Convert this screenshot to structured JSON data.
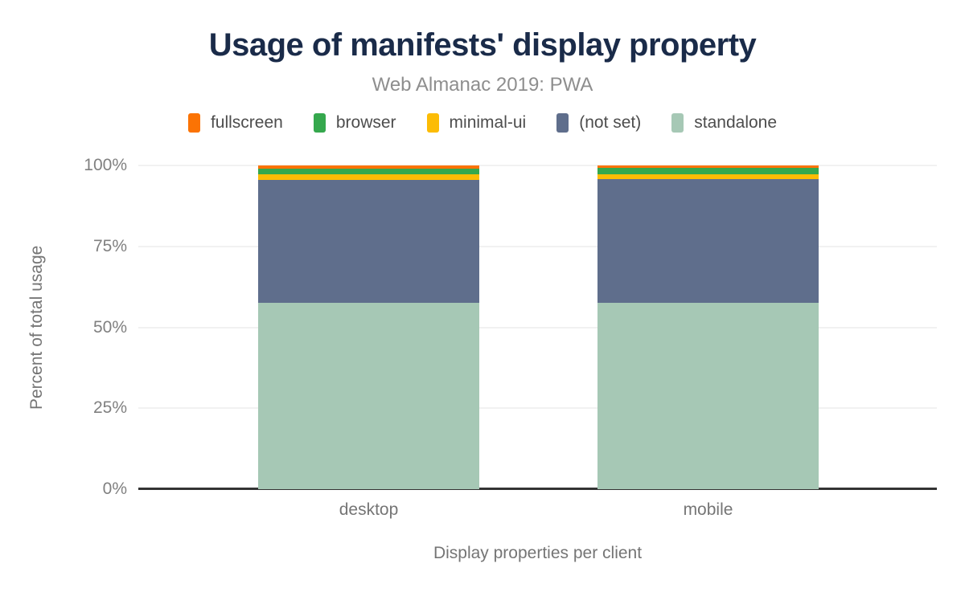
{
  "chart_data": {
    "type": "bar",
    "variant": "stacked-100",
    "title": "Usage of manifests' display property",
    "subtitle": "Web Almanac 2019: PWA",
    "xlabel": "Display properties per client",
    "ylabel": "Percent of total usage",
    "categories": [
      "desktop",
      "mobile"
    ],
    "series": [
      {
        "name": "fullscreen",
        "color": "#fb7304",
        "values": [
          1.0,
          0.8
        ]
      },
      {
        "name": "browser",
        "color": "#35a84d",
        "values": [
          1.7,
          2.0
        ]
      },
      {
        "name": "minimal-ui",
        "color": "#fcbc05",
        "values": [
          1.8,
          1.3
        ]
      },
      {
        "name": "(not set)",
        "color": "#5f6e8c",
        "values": [
          38.0,
          38.4
        ]
      },
      {
        "name": "standalone",
        "color": "#a6c8b5",
        "values": [
          57.5,
          57.5
        ]
      }
    ],
    "yticks": [
      "0%",
      "25%",
      "50%",
      "75%",
      "100%"
    ],
    "ylim": [
      0,
      100
    ],
    "grid": true,
    "legend_position": "top",
    "colors": {
      "title": "#1a2b49",
      "subtitle": "#8e8e8e",
      "axis_text": "#757575",
      "tick_text": "#808080",
      "legend_text": "#4d4d4d",
      "gridline": "#f1f1f1",
      "axis_line": "#333333",
      "background": "#ffffff"
    }
  }
}
